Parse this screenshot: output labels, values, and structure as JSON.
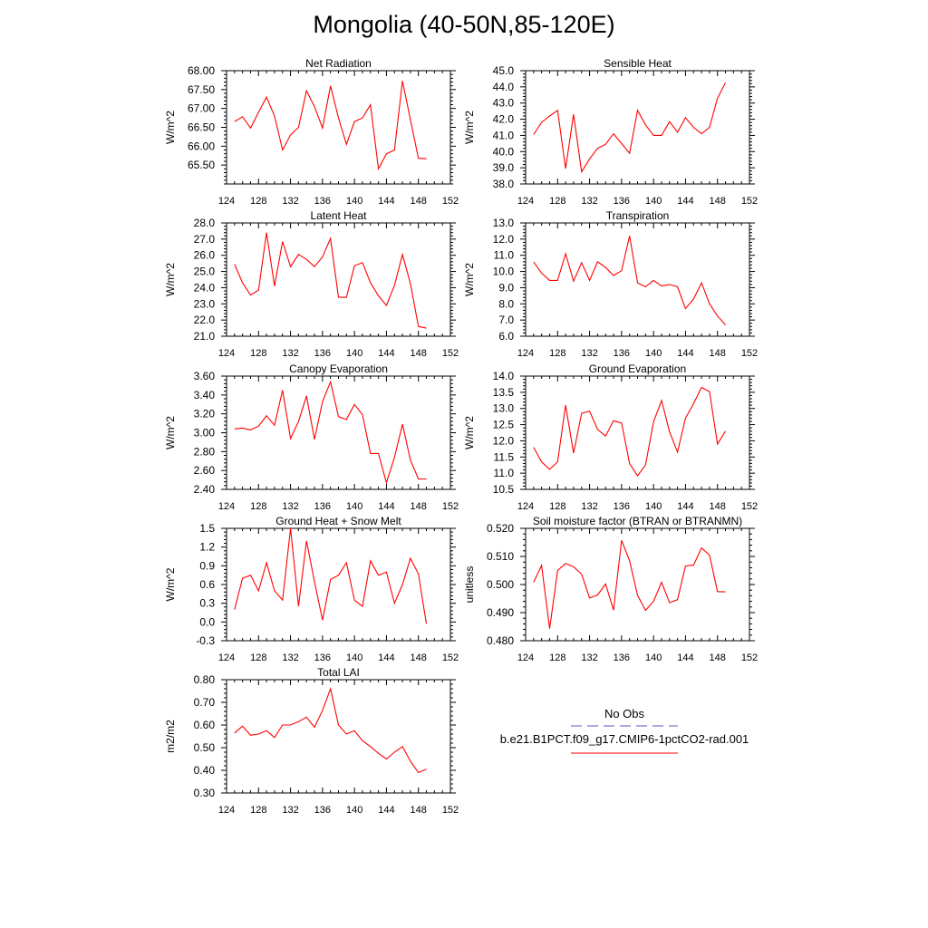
{
  "page_title": "Mongolia (40-50N,85-120E)",
  "colors": {
    "series": "#ff0000",
    "obs": "#5555bb",
    "axis": "#000000"
  },
  "legend": {
    "obs_label": "No Obs",
    "case_label": "b.e21.B1PCT.f09_g17.CMIP6-1pctCO2-rad.001"
  },
  "chart_data": [
    {
      "type": "line",
      "title": "Net Radiation",
      "ylabel": "W/m^2",
      "xlim": [
        124,
        152
      ],
      "xticks": [
        124,
        128,
        132,
        136,
        140,
        144,
        148,
        152
      ],
      "ylim": [
        65.0,
        68.0
      ],
      "yticks": [
        "65.50",
        "66.00",
        "66.50",
        "67.00",
        "67.50",
        "68.00"
      ],
      "x": [
        125,
        126,
        127,
        128,
        129,
        130,
        131,
        132,
        133,
        134,
        135,
        136,
        137,
        138,
        139,
        140,
        141,
        142,
        143,
        144,
        145,
        146,
        147,
        148,
        149
      ],
      "values": [
        66.65,
        66.78,
        66.48,
        66.9,
        67.3,
        66.8,
        65.9,
        66.3,
        66.5,
        67.47,
        67.05,
        66.48,
        67.6,
        66.75,
        66.05,
        66.65,
        66.75,
        67.1,
        65.4,
        65.8,
        65.9,
        67.73,
        66.7,
        65.68,
        65.67
      ]
    },
    {
      "type": "line",
      "title": "Sensible Heat",
      "ylabel": "W/m^2",
      "xlim": [
        124,
        152
      ],
      "xticks": [
        124,
        128,
        132,
        136,
        140,
        144,
        148,
        152
      ],
      "ylim": [
        38.0,
        45.0
      ],
      "yticks": [
        "38.0",
        "39.0",
        "40.0",
        "41.0",
        "42.0",
        "43.0",
        "44.0",
        "45.0"
      ],
      "x": [
        125,
        126,
        127,
        128,
        129,
        130,
        131,
        132,
        133,
        134,
        135,
        136,
        137,
        138,
        139,
        140,
        141,
        142,
        143,
        144,
        145,
        146,
        147,
        148,
        149
      ],
      "values": [
        41.05,
        41.8,
        42.2,
        42.55,
        38.95,
        42.3,
        38.75,
        39.55,
        40.2,
        40.45,
        41.1,
        40.5,
        39.9,
        42.55,
        41.65,
        41.0,
        41.0,
        41.85,
        41.2,
        42.1,
        41.5,
        41.1,
        41.5,
        43.3,
        44.25
      ]
    },
    {
      "type": "line",
      "title": "Latent Heat",
      "ylabel": "W/m^2",
      "xlim": [
        124,
        152
      ],
      "xticks": [
        124,
        128,
        132,
        136,
        140,
        144,
        148,
        152
      ],
      "ylim": [
        21.0,
        28.0
      ],
      "yticks": [
        "21.0",
        "22.0",
        "23.0",
        "24.0",
        "25.0",
        "26.0",
        "27.0",
        "28.0"
      ],
      "x": [
        125,
        126,
        127,
        128,
        129,
        130,
        131,
        132,
        133,
        134,
        135,
        136,
        137,
        138,
        139,
        140,
        141,
        142,
        143,
        144,
        145,
        146,
        147,
        148,
        149
      ],
      "values": [
        25.45,
        24.3,
        23.55,
        23.85,
        27.4,
        24.1,
        26.85,
        25.3,
        26.05,
        25.75,
        25.3,
        25.9,
        27.05,
        23.4,
        23.4,
        25.35,
        25.55,
        24.3,
        23.5,
        22.9,
        24.15,
        26.05,
        24.25,
        21.6,
        21.5
      ]
    },
    {
      "type": "line",
      "title": "Transpiration",
      "ylabel": "W/m^2",
      "xlim": [
        124,
        152
      ],
      "xticks": [
        124,
        128,
        132,
        136,
        140,
        144,
        148,
        152
      ],
      "ylim": [
        6.0,
        13.0
      ],
      "yticks": [
        "6.0",
        "7.0",
        "8.0",
        "9.0",
        "10.0",
        "11.0",
        "12.0",
        "13.0"
      ],
      "x": [
        125,
        126,
        127,
        128,
        129,
        130,
        131,
        132,
        133,
        134,
        135,
        136,
        137,
        138,
        139,
        140,
        141,
        142,
        143,
        144,
        145,
        146,
        147,
        148,
        149
      ],
      "values": [
        10.6,
        9.9,
        9.45,
        9.45,
        11.1,
        9.4,
        10.55,
        9.45,
        10.6,
        10.25,
        9.75,
        10.05,
        12.2,
        9.3,
        9.05,
        9.45,
        9.1,
        9.2,
        9.05,
        7.7,
        8.3,
        9.3,
        8.0,
        7.25,
        6.7
      ]
    },
    {
      "type": "line",
      "title": "Canopy Evaporation",
      "ylabel": "W/m^2",
      "xlim": [
        124,
        152
      ],
      "xticks": [
        124,
        128,
        132,
        136,
        140,
        144,
        148,
        152
      ],
      "ylim": [
        2.4,
        3.6
      ],
      "yticks": [
        "2.40",
        "2.60",
        "2.80",
        "3.00",
        "3.20",
        "3.40",
        "3.60"
      ],
      "x": [
        125,
        126,
        127,
        128,
        129,
        130,
        131,
        132,
        133,
        134,
        135,
        136,
        137,
        138,
        139,
        140,
        141,
        142,
        143,
        144,
        145,
        146,
        147,
        148,
        149
      ],
      "values": [
        3.04,
        3.05,
        3.03,
        3.07,
        3.18,
        3.08,
        3.45,
        2.94,
        3.12,
        3.39,
        2.93,
        3.33,
        3.54,
        3.17,
        3.14,
        3.3,
        3.19,
        2.78,
        2.78,
        2.47,
        2.74,
        3.09,
        2.71,
        2.51,
        2.51
      ]
    },
    {
      "type": "line",
      "title": "Ground Evaporation",
      "ylabel": "W/m^2",
      "xlim": [
        124,
        152
      ],
      "xticks": [
        124,
        128,
        132,
        136,
        140,
        144,
        148,
        152
      ],
      "ylim": [
        10.5,
        14.0
      ],
      "yticks": [
        "10.5",
        "11.0",
        "11.5",
        "12.0",
        "12.5",
        "13.0",
        "13.5",
        "14.0"
      ],
      "x": [
        125,
        126,
        127,
        128,
        129,
        130,
        131,
        132,
        133,
        134,
        135,
        136,
        137,
        138,
        139,
        140,
        141,
        142,
        143,
        144,
        145,
        146,
        147,
        148,
        149
      ],
      "values": [
        11.8,
        11.35,
        11.12,
        11.35,
        13.1,
        11.62,
        12.85,
        12.92,
        12.35,
        12.15,
        12.62,
        12.55,
        11.3,
        10.92,
        11.25,
        12.58,
        13.25,
        12.28,
        11.65,
        12.7,
        13.15,
        13.65,
        13.52,
        11.9,
        12.3
      ]
    },
    {
      "type": "line",
      "title": "Ground Heat + Snow Melt",
      "ylabel": "W/m^2",
      "xlim": [
        124,
        152
      ],
      "xticks": [
        124,
        128,
        132,
        136,
        140,
        144,
        148,
        152
      ],
      "ylim": [
        -0.3,
        1.5
      ],
      "yticks": [
        "-0.3",
        "0.0",
        "0.3",
        "0.6",
        "0.9",
        "1.2",
        "1.5"
      ],
      "x": [
        125,
        126,
        127,
        128,
        129,
        130,
        131,
        132,
        133,
        134,
        135,
        136,
        137,
        138,
        139,
        140,
        141,
        142,
        143,
        144,
        145,
        146,
        147,
        148,
        149
      ],
      "values": [
        0.2,
        0.7,
        0.75,
        0.5,
        0.95,
        0.5,
        0.35,
        1.5,
        0.25,
        1.3,
        0.65,
        0.03,
        0.68,
        0.75,
        0.95,
        0.35,
        0.25,
        0.98,
        0.75,
        0.8,
        0.3,
        0.6,
        1.02,
        0.77,
        -0.03
      ]
    },
    {
      "type": "line",
      "title": "Soil moisture factor (BTRAN or BTRANMN)",
      "ylabel": "unitless",
      "xlim": [
        124,
        152
      ],
      "xticks": [
        124,
        128,
        132,
        136,
        140,
        144,
        148,
        152
      ],
      "ylim": [
        0.48,
        0.52
      ],
      "yticks": [
        "0.480",
        "0.490",
        "0.500",
        "0.510",
        "0.520"
      ],
      "x": [
        125,
        126,
        127,
        128,
        129,
        130,
        131,
        132,
        133,
        134,
        135,
        136,
        137,
        138,
        139,
        140,
        141,
        142,
        143,
        144,
        145,
        146,
        147,
        148,
        149
      ],
      "values": [
        0.5008,
        0.5068,
        0.4843,
        0.505,
        0.5075,
        0.5063,
        0.5037,
        0.4952,
        0.4963,
        0.5002,
        0.4909,
        0.5157,
        0.5085,
        0.4962,
        0.4908,
        0.494,
        0.5008,
        0.4935,
        0.4946,
        0.5066,
        0.5069,
        0.513,
        0.5105,
        0.4975,
        0.4974
      ]
    },
    {
      "type": "line",
      "title": "Total LAI",
      "ylabel": "m2/m2",
      "xlim": [
        124,
        152
      ],
      "xticks": [
        124,
        128,
        132,
        136,
        140,
        144,
        148,
        152
      ],
      "ylim": [
        0.3,
        0.8
      ],
      "yticks": [
        "0.30",
        "0.40",
        "0.50",
        "0.60",
        "0.70",
        "0.80"
      ],
      "x": [
        125,
        126,
        127,
        128,
        129,
        130,
        131,
        132,
        133,
        134,
        135,
        136,
        137,
        138,
        139,
        140,
        141,
        142,
        143,
        144,
        145,
        146,
        147,
        148,
        149
      ],
      "values": [
        0.565,
        0.595,
        0.555,
        0.56,
        0.575,
        0.545,
        0.6,
        0.6,
        0.615,
        0.635,
        0.59,
        0.665,
        0.76,
        0.6,
        0.56,
        0.575,
        0.53,
        0.505,
        0.475,
        0.45,
        0.48,
        0.505,
        0.44,
        0.39,
        0.405
      ]
    }
  ]
}
